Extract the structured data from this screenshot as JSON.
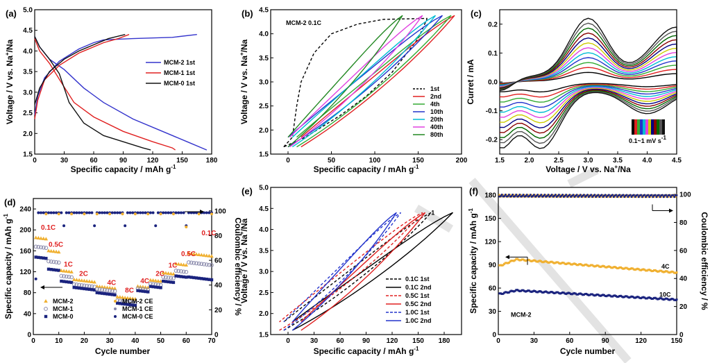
{
  "chart_data": [
    {
      "id": "a",
      "type": "line",
      "panel_label": "(a)",
      "xlabel": "Specific capacity / mAh g",
      "xlabel_sup": "-1",
      "ylabel": "Voltage / V vs. Na",
      "ylabel_sup": "+",
      "ylabel_tail": "/Na",
      "xlim": [
        0,
        180
      ],
      "ylim": [
        1.5,
        5.0
      ],
      "xticks": [
        "0",
        "30",
        "60",
        "90",
        "120",
        "150",
        "180"
      ],
      "yticks": [
        "1.5",
        "2.0",
        "2.5",
        "3.0",
        "3.5",
        "4.0",
        "4.5",
        "5.0"
      ],
      "series": [
        {
          "name": "MCM-2 1st",
          "color": "#3333cc",
          "charge": [
            [
              0,
              2.45
            ],
            [
              3,
              2.9
            ],
            [
              10,
              3.35
            ],
            [
              25,
              3.75
            ],
            [
              45,
              4.05
            ],
            [
              60,
              4.2
            ],
            [
              70,
              4.27
            ],
            [
              100,
              4.3
            ],
            [
              140,
              4.33
            ],
            [
              165,
              4.4
            ]
          ],
          "discharge": [
            [
              0,
              4.35
            ],
            [
              5,
              4.1
            ],
            [
              15,
              3.8
            ],
            [
              30,
              3.55
            ],
            [
              50,
              3.1
            ],
            [
              70,
              2.75
            ],
            [
              100,
              2.35
            ],
            [
              130,
              2.05
            ],
            [
              155,
              1.8
            ],
            [
              175,
              1.6
            ]
          ]
        },
        {
          "name": "MCM-1 1st",
          "color": "#e02020",
          "charge": [
            [
              0,
              2.35
            ],
            [
              3,
              2.8
            ],
            [
              10,
              3.3
            ],
            [
              25,
              3.65
            ],
            [
              45,
              3.95
            ],
            [
              60,
              4.1
            ],
            [
              70,
              4.2
            ],
            [
              85,
              4.3
            ],
            [
              96,
              4.4
            ]
          ],
          "discharge": [
            [
              0,
              4.3
            ],
            [
              5,
              4.0
            ],
            [
              15,
              3.7
            ],
            [
              28,
              3.2
            ],
            [
              40,
              2.75
            ],
            [
              60,
              2.4
            ],
            [
              90,
              2.05
            ],
            [
              120,
              1.8
            ],
            [
              140,
              1.65
            ],
            [
              143,
              1.6
            ]
          ]
        },
        {
          "name": "MCM-0 1st",
          "color": "#111111",
          "charge": [
            [
              0,
              2.7
            ],
            [
              5,
              3.1
            ],
            [
              15,
              3.5
            ],
            [
              30,
              3.8
            ],
            [
              45,
              4.0
            ],
            [
              60,
              4.15
            ],
            [
              75,
              4.3
            ],
            [
              92,
              4.4
            ]
          ],
          "discharge": [
            [
              0,
              4.35
            ],
            [
              5,
              4.1
            ],
            [
              15,
              3.8
            ],
            [
              25,
              3.45
            ],
            [
              35,
              2.75
            ],
            [
              50,
              2.25
            ],
            [
              70,
              1.95
            ],
            [
              90,
              1.8
            ],
            [
              110,
              1.65
            ],
            [
              118,
              1.6
            ]
          ]
        }
      ]
    },
    {
      "id": "b",
      "type": "line",
      "panel_label": "(b)",
      "annotation": "MCM-2 0.1C",
      "xlabel": "Specific capacity / mAh g",
      "xlabel_sup": "-1",
      "ylabel": "Voltage / V vs. Na",
      "ylabel_sup": "+",
      "ylabel_tail": "/Na",
      "xlim": [
        -20,
        200
      ],
      "ylim": [
        1.5,
        4.5
      ],
      "xticks": [
        "0",
        "50",
        "100",
        "150",
        "200"
      ],
      "xtick_values": [
        0,
        50,
        100,
        150,
        200
      ],
      "yticks": [
        "1.5",
        "2.0",
        "2.5",
        "3.0",
        "3.5",
        "4.0",
        "4.5"
      ],
      "series": [
        {
          "name": "1st",
          "color": "#000000",
          "dashed": true,
          "cap": 160,
          "start": -5,
          "close": 190
        },
        {
          "name": "2nd",
          "color": "#e02020",
          "cap": 192,
          "start": 15
        },
        {
          "name": "4th",
          "color": "#33aa33",
          "cap": 188,
          "start": 10
        },
        {
          "name": "10th",
          "color": "#2233cc",
          "cap": 178,
          "start": 0
        },
        {
          "name": "20th",
          "color": "#00bcd4",
          "cap": 170,
          "start": 5
        },
        {
          "name": "40th",
          "color": "#e040e0",
          "cap": 155,
          "start": 2
        },
        {
          "name": "80th",
          "color": "#228822",
          "cap": 132,
          "start": 0
        }
      ]
    },
    {
      "id": "c",
      "type": "line",
      "panel_label": "(c)",
      "xlabel": "Voltage / V vs. Na",
      "xlabel_sup": "+",
      "xlabel_tail": "/Na",
      "ylabel": "Curret / mA",
      "xlim": [
        1.5,
        4.5
      ],
      "ylim": [
        -0.25,
        0.25
      ],
      "xticks": [
        "1.5",
        "2.0",
        "2.5",
        "3.0",
        "3.5",
        "4.0",
        "4.5"
      ],
      "yticks": [
        "-0.2",
        "-0.1",
        "0.0",
        "0.1",
        "0.2"
      ],
      "ytick_values": [
        -0.2,
        -0.1,
        0.0,
        0.1,
        0.2
      ],
      "legend_text": "0.1~1 mV s",
      "legend_sup": "-1",
      "series_colors": [
        "#000000",
        "#e02020",
        "#33aa33",
        "#2233cc",
        "#00bcd4",
        "#e040e0",
        "#cccc00",
        "#000080",
        "#880000",
        "#006600",
        "#555555",
        "#111111"
      ]
    },
    {
      "id": "d",
      "type": "scatter",
      "panel_label": "(d)",
      "xlabel": "Cycle number",
      "ylabel": "Specific capacity / mAh g",
      "ylabel_sup": "-1",
      "y2label": "Coulombic efficiency / %",
      "xlim": [
        0,
        70
      ],
      "ylim": [
        0,
        260
      ],
      "y2lim": [
        0,
        110
      ],
      "xticks": [
        "0",
        "10",
        "20",
        "30",
        "40",
        "50",
        "60",
        "70"
      ],
      "yticks": [
        "0",
        "40",
        "80",
        "120",
        "160",
        "200",
        "240"
      ],
      "ytick_values": [
        0,
        40,
        80,
        120,
        160,
        200,
        240
      ],
      "y2ticks": [
        "0",
        "20",
        "40",
        "60",
        "80",
        "100"
      ],
      "y2tick_values": [
        0,
        20,
        40,
        60,
        80,
        100
      ],
      "rate_labels": [
        {
          "text": "0.1C",
          "x": 3,
          "y": 200
        },
        {
          "text": "0.5C",
          "x": 6,
          "y": 168
        },
        {
          "text": "1C",
          "x": 12,
          "y": 130
        },
        {
          "text": "2C",
          "x": 18,
          "y": 112
        },
        {
          "text": "4C",
          "x": 29,
          "y": 95
        },
        {
          "text": "8C",
          "x": 36,
          "y": 80
        },
        {
          "text": "4C",
          "x": 42,
          "y": 98
        },
        {
          "text": "2C",
          "x": 48,
          "y": 112
        },
        {
          "text": "1C",
          "x": 53,
          "y": 128
        },
        {
          "text": "0.5C",
          "x": 58,
          "y": 150
        },
        {
          "text": "0.1C",
          "x": 66,
          "y": 190
        }
      ],
      "rate_segments": [
        {
          "start": 1,
          "end": 5,
          "v": [
            185,
            168,
            148
          ]
        },
        {
          "start": 6,
          "end": 10,
          "v": [
            160,
            140,
            125
          ]
        },
        {
          "start": 11,
          "end": 15,
          "v": [
            122,
            112,
            102
          ]
        },
        {
          "start": 16,
          "end": 24,
          "v": [
            105,
            96,
            90
          ]
        },
        {
          "start": 25,
          "end": 32,
          "v": [
            92,
            87,
            80
          ]
        },
        {
          "start": 33,
          "end": 40,
          "v": [
            72,
            65,
            60
          ]
        },
        {
          "start": 41,
          "end": 45,
          "v": [
            92,
            88,
            84
          ]
        },
        {
          "start": 46,
          "end": 50,
          "v": [
            104,
            97,
            92
          ]
        },
        {
          "start": 51,
          "end": 55,
          "v": [
            118,
            110,
            102
          ]
        },
        {
          "start": 56,
          "end": 60,
          "v": [
            135,
            122,
            112
          ]
        },
        {
          "start": 61,
          "end": 70,
          "v": [
            155,
            138,
            110
          ]
        }
      ],
      "series": [
        {
          "name": "MCM-2",
          "color": "#f0b030",
          "marker": "triangle"
        },
        {
          "name": "MCM-1",
          "color": "#8888aa",
          "marker": "circle"
        },
        {
          "name": "MCM-0",
          "color": "#1a237e",
          "marker": "square"
        },
        {
          "name": "MCM-2 CE",
          "color": "#f0b030",
          "marker": "star"
        },
        {
          "name": "MCM-1 CE",
          "color": "#8888aa",
          "marker": "star"
        },
        {
          "name": "MCM-0 CE",
          "color": "#1a237e",
          "marker": "star"
        }
      ]
    },
    {
      "id": "e",
      "type": "line",
      "panel_label": "(e)",
      "curve_label": "1",
      "xlabel": "Specific capacity / mAh g",
      "xlabel_sup": "-1",
      "ylabel": "Voltage / V vs. Na",
      "ylabel_sup": "+",
      "ylabel_tail": "/Na",
      "xlim": [
        -20,
        200
      ],
      "ylim": [
        1.5,
        5.0
      ],
      "xticks": [
        "0",
        "30",
        "60",
        "90",
        "120",
        "150",
        "180"
      ],
      "xtick_values": [
        0,
        30,
        60,
        90,
        120,
        150,
        180
      ],
      "yticks": [
        "1.5",
        "2.0",
        "2.5",
        "3.0",
        "3.5",
        "4.0",
        "4.5",
        "5.0"
      ],
      "series": [
        {
          "name": "0.1C 1st",
          "color": "#000000",
          "dashed": true,
          "cap": 165,
          "start": -5
        },
        {
          "name": "0.1C 2nd",
          "color": "#000000",
          "cap": 190,
          "start": 5
        },
        {
          "name": "0.5C 1st",
          "color": "#e02020",
          "dashed": true,
          "cap": 155,
          "start": -10
        },
        {
          "name": "0.5C 2nd",
          "color": "#e02020",
          "cap": 158,
          "start": 15
        },
        {
          "name": "1.0C 1st",
          "color": "#2233cc",
          "dashed": true,
          "cap": 130,
          "start": -5
        },
        {
          "name": "1.0C 2nd",
          "color": "#2233cc",
          "cap": 125,
          "start": 5
        }
      ]
    },
    {
      "id": "f",
      "type": "scatter",
      "panel_label": "(f)",
      "annotation": "MCM-2",
      "xlabel": "Cycle number",
      "ylabel": "Specific capacity / mAh g",
      "ylabel_sup": "-1",
      "y2label": "Coulombic efficiency / %",
      "xlim": [
        0,
        150
      ],
      "ylim": [
        0,
        190
      ],
      "y2lim": [
        0,
        105
      ],
      "xticks": [
        "0",
        "30",
        "60",
        "90",
        "120",
        "150"
      ],
      "yticks": [
        "0",
        "30",
        "60",
        "90",
        "120",
        "150",
        "180"
      ],
      "ytick_values": [
        0,
        30,
        60,
        90,
        120,
        150,
        180
      ],
      "y2ticks": [
        "0",
        "20",
        "40",
        "60",
        "80",
        "100"
      ],
      "y2tick_values": [
        0,
        20,
        40,
        60,
        80,
        100
      ],
      "series": [
        {
          "name": "4C",
          "color": "#f0b030",
          "start": 88,
          "peak": 97,
          "end": 80
        },
        {
          "name": "10C",
          "color": "#1a237e",
          "start": 52,
          "peak": 57,
          "end": 45
        }
      ],
      "ce_value": 99
    }
  ]
}
